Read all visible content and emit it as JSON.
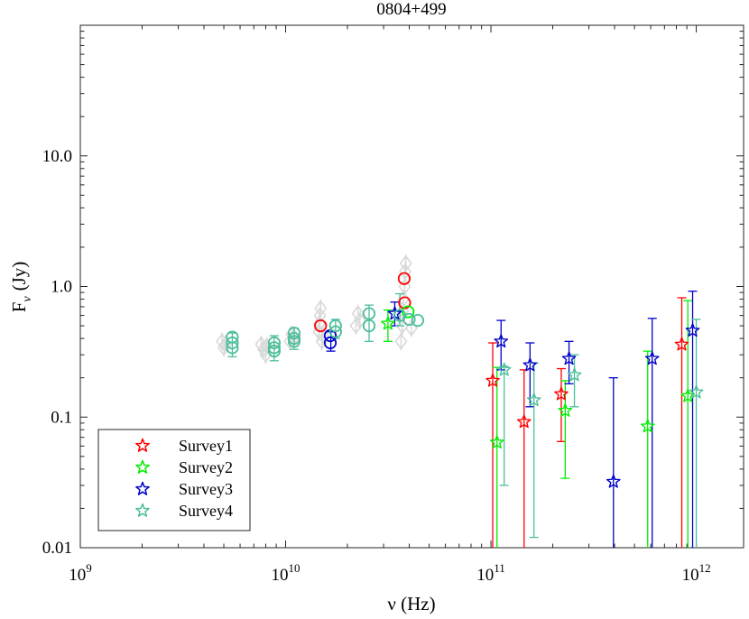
{
  "chart_data": {
    "type": "scatter",
    "title": "0804+499",
    "xlabel": "ν (Hz)",
    "ylabel": "Fν (Jy)",
    "ylabel_main": "F",
    "ylabel_sub": "ν",
    "ylabel_unit": "(Jy)",
    "x_scale": "log",
    "y_scale": "log",
    "xlim": [
      1000000000.0,
      1700000000000.0
    ],
    "ylim": [
      0.01,
      100
    ],
    "x_ticks": [
      {
        "value": 1000000000.0,
        "base": "10",
        "exp": "9"
      },
      {
        "value": 10000000000.0,
        "base": "10",
        "exp": "10"
      },
      {
        "value": 100000000000.0,
        "base": "10",
        "exp": "11"
      },
      {
        "value": 1000000000000.0,
        "base": "10",
        "exp": "12"
      }
    ],
    "y_ticks": [
      {
        "value": 0.01,
        "label": "0.01"
      },
      {
        "value": 0.1,
        "label": "0.1"
      },
      {
        "value": 1,
        "label": "1.0"
      },
      {
        "value": 10,
        "label": "10.0"
      }
    ],
    "legend_position": "bottom-left",
    "colors": {
      "archival": "#d9d9d9",
      "survey1": "#ff0000",
      "survey2": "#00ee00",
      "survey3": "#0000cc",
      "survey4": "#4dbe9c"
    },
    "archival": [
      {
        "x": 4900000000.0,
        "y": 0.38
      },
      {
        "x": 5000000000.0,
        "y": 0.34
      },
      {
        "x": 5100000000.0,
        "y": 0.36
      },
      {
        "x": 7600000000.0,
        "y": 0.36
      },
      {
        "x": 7800000000.0,
        "y": 0.33
      },
      {
        "x": 8000000000.0,
        "y": 0.3
      },
      {
        "x": 8100000000.0,
        "y": 0.35
      },
      {
        "x": 10500000000.0,
        "y": 0.38
      },
      {
        "x": 10700000000.0,
        "y": 0.43
      },
      {
        "x": 11000000000.0,
        "y": 0.41
      },
      {
        "x": 14500000000.0,
        "y": 0.45
      },
      {
        "x": 14600000000.0,
        "y": 0.52
      },
      {
        "x": 14700000000.0,
        "y": 0.6
      },
      {
        "x": 14800000000.0,
        "y": 0.68
      },
      {
        "x": 15000000000.0,
        "y": 0.38
      },
      {
        "x": 15200000000.0,
        "y": 0.42
      },
      {
        "x": 22000000000.0,
        "y": 0.5
      },
      {
        "x": 22500000000.0,
        "y": 0.62
      },
      {
        "x": 23000000000.0,
        "y": 0.55
      },
      {
        "x": 36500000000.0,
        "y": 0.38
      },
      {
        "x": 37000000000.0,
        "y": 0.5
      },
      {
        "x": 37200000000.0,
        "y": 0.65
      },
      {
        "x": 37500000000.0,
        "y": 0.8
      },
      {
        "x": 38000000000.0,
        "y": 1.0
      },
      {
        "x": 38200000000.0,
        "y": 1.3
      },
      {
        "x": 38500000000.0,
        "y": 1.5
      },
      {
        "x": 41000000000.0,
        "y": 0.48
      }
    ],
    "series": [
      {
        "name": "Survey1",
        "color": "#ff0000",
        "points": [
          {
            "x": 14800000000.0,
            "y": 0.5,
            "marker": "circle"
          },
          {
            "x": 37800000000.0,
            "y": 1.15,
            "marker": "circle"
          },
          {
            "x": 38000000000.0,
            "y": 0.75,
            "marker": "circle"
          },
          {
            "x": 102000000000.0,
            "y": 0.19,
            "lo": 0.01,
            "hi": 0.37,
            "marker": "star"
          },
          {
            "x": 145000000000.0,
            "y": 0.092,
            "lo": 0.01,
            "hi": 0.23,
            "marker": "star"
          },
          {
            "x": 220000000000.0,
            "y": 0.15,
            "lo": 0.065,
            "hi": 0.235,
            "marker": "star"
          },
          {
            "x": 850000000000.0,
            "y": 0.36,
            "lo": 0.01,
            "hi": 0.82,
            "marker": "star"
          }
        ]
      },
      {
        "name": "Survey2",
        "color": "#00ee00",
        "points": [
          {
            "x": 31500000000.0,
            "y": 0.52,
            "lo": 0.38,
            "hi": 0.66,
            "marker": "star"
          },
          {
            "x": 39500000000.0,
            "y": 0.64,
            "marker": "circle"
          },
          {
            "x": 107000000000.0,
            "y": 0.064,
            "lo": 0.01,
            "hi": 0.24,
            "marker": "star"
          },
          {
            "x": 230000000000.0,
            "y": 0.112,
            "lo": 0.034,
            "hi": 0.19,
            "marker": "star"
          },
          {
            "x": 580000000000.0,
            "y": 0.085,
            "lo": 0.01,
            "hi": 0.32,
            "marker": "star"
          },
          {
            "x": 910000000000.0,
            "y": 0.145,
            "lo": 0.01,
            "hi": 0.78,
            "marker": "star"
          }
        ]
      },
      {
        "name": "Survey3",
        "color": "#0000cc",
        "points": [
          {
            "x": 16500000000.0,
            "y": 0.37,
            "marker": "circle"
          },
          {
            "x": 16500000000.0,
            "y": 0.42,
            "marker": "circle"
          },
          {
            "x": 16600000000.0,
            "y": 0.38,
            "lo": 0.32,
            "hi": 0.45,
            "marker": "errbar"
          },
          {
            "x": 34000000000.0,
            "y": 0.62,
            "lo": 0.5,
            "hi": 0.76,
            "marker": "star"
          },
          {
            "x": 112000000000.0,
            "y": 0.38,
            "lo": 0.23,
            "hi": 0.55,
            "marker": "star"
          },
          {
            "x": 155000000000.0,
            "y": 0.25,
            "lo": 0.12,
            "hi": 0.37,
            "marker": "star"
          },
          {
            "x": 240000000000.0,
            "y": 0.28,
            "lo": 0.18,
            "hi": 0.38,
            "marker": "star"
          },
          {
            "x": 395000000000.0,
            "y": 0.032,
            "lo": 0.01,
            "hi": 0.2,
            "marker": "star"
          },
          {
            "x": 610000000000.0,
            "y": 0.28,
            "lo": 0.01,
            "hi": 0.57,
            "marker": "star"
          },
          {
            "x": 960000000000.0,
            "y": 0.46,
            "lo": 0.01,
            "hi": 0.92,
            "marker": "star"
          }
        ]
      },
      {
        "name": "Survey4",
        "color": "#4dbe9c",
        "points": [
          {
            "x": 5500000000.0,
            "y": 0.41,
            "marker": "circle"
          },
          {
            "x": 5500000000.0,
            "y": 0.37,
            "marker": "circle"
          },
          {
            "x": 5500000000.0,
            "y": 0.34,
            "lo": 0.29,
            "hi": 0.44,
            "marker": "circle"
          },
          {
            "x": 8800000000.0,
            "y": 0.37,
            "marker": "circle"
          },
          {
            "x": 8800000000.0,
            "y": 0.34,
            "marker": "circle"
          },
          {
            "x": 8800000000.0,
            "y": 0.32,
            "lo": 0.27,
            "hi": 0.42,
            "marker": "circle"
          },
          {
            "x": 11000000000.0,
            "y": 0.44,
            "marker": "circle"
          },
          {
            "x": 11000000000.0,
            "y": 0.4,
            "marker": "circle"
          },
          {
            "x": 11000000000.0,
            "y": 0.38,
            "lo": 0.33,
            "hi": 0.48,
            "marker": "circle"
          },
          {
            "x": 17500000000.0,
            "y": 0.5,
            "marker": "circle"
          },
          {
            "x": 17500000000.0,
            "y": 0.45,
            "lo": 0.4,
            "hi": 0.56,
            "marker": "circle"
          },
          {
            "x": 25500000000.0,
            "y": 0.62,
            "marker": "circle"
          },
          {
            "x": 25500000000.0,
            "y": 0.5,
            "lo": 0.38,
            "hi": 0.72,
            "marker": "circle"
          },
          {
            "x": 36000000000.0,
            "y": 0.6,
            "lo": 0.5,
            "hi": 0.88,
            "marker": "circle"
          },
          {
            "x": 40000000000.0,
            "y": 0.56,
            "marker": "circle"
          },
          {
            "x": 44000000000.0,
            "y": 0.55,
            "marker": "circle"
          },
          {
            "x": 116000000000.0,
            "y": 0.23,
            "lo": 0.03,
            "hi": 0.245,
            "marker": "star"
          },
          {
            "x": 162000000000.0,
            "y": 0.135,
            "lo": 0.012,
            "hi": 0.26,
            "marker": "star"
          },
          {
            "x": 255000000000.0,
            "y": 0.21,
            "lo": 0.12,
            "hi": 0.3,
            "marker": "star"
          },
          {
            "x": 1000000000000.0,
            "y": 0.155,
            "lo": 0.01,
            "hi": 0.56,
            "marker": "star"
          }
        ]
      }
    ],
    "legend": [
      {
        "label": "Survey1",
        "color": "#ff0000"
      },
      {
        "label": "Survey2",
        "color": "#00ee00"
      },
      {
        "label": "Survey3",
        "color": "#0000cc"
      },
      {
        "label": "Survey4",
        "color": "#4dbe9c"
      }
    ]
  }
}
